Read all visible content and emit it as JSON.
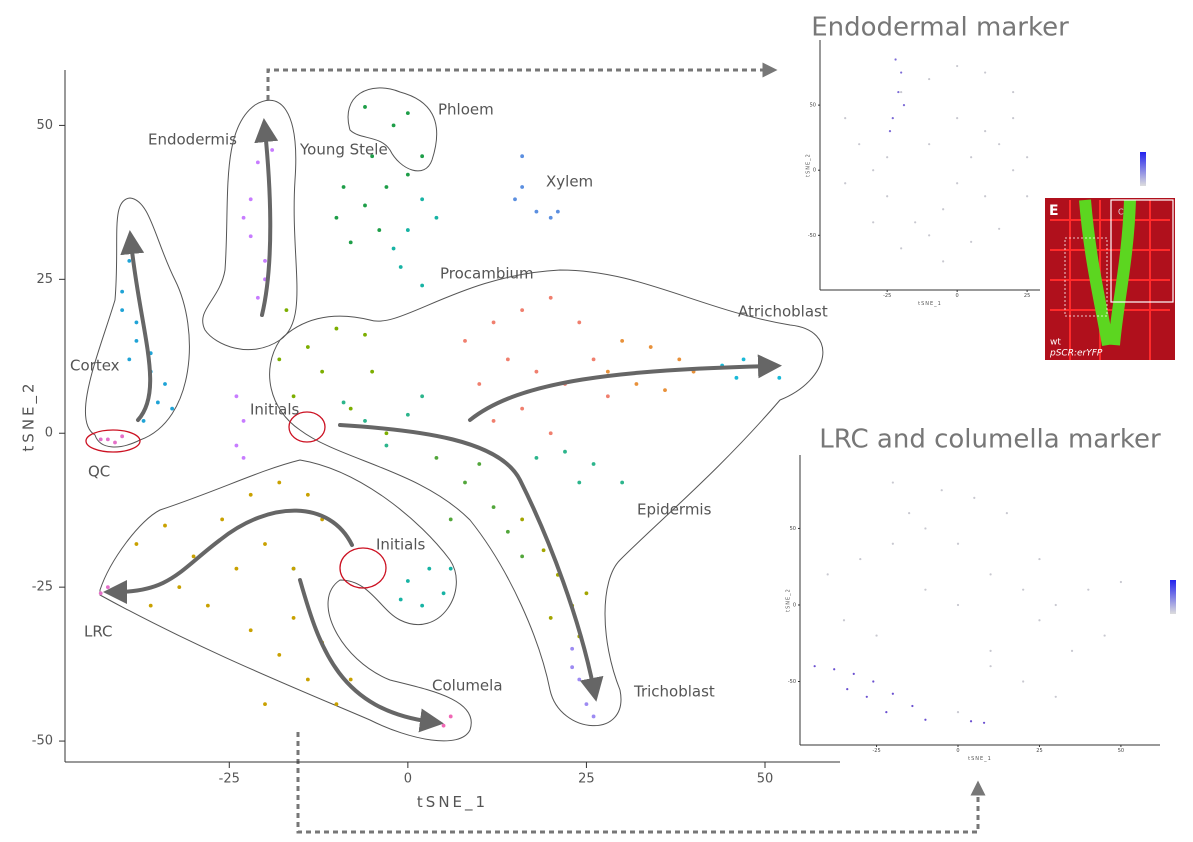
{
  "chart_data": [
    {
      "type": "scatter",
      "x_label": "tSNE_1",
      "y_label": "tSNE_2",
      "xlim": [
        -48,
        60.5
      ],
      "ylim": [
        -53.4,
        59
      ],
      "xticks": [
        -25,
        0,
        25,
        50
      ],
      "yticks": [
        -50,
        -25,
        0,
        25,
        50
      ],
      "annotations": [
        "Endodermis",
        "Young Stele",
        "Phloem",
        "Xylem",
        "Procambium",
        "Cortex",
        "QC",
        "Initials",
        "Atrichoblast",
        "Epidermis",
        "Initials",
        "LRC",
        "Columela",
        "Trichoblast"
      ],
      "series": [
        {
          "color": "#1fa3d6",
          "x": [
            -39,
            -40,
            -38,
            -36,
            -35,
            -37,
            -34,
            -40,
            -38,
            -36,
            -33,
            -39
          ],
          "y": [
            28,
            20,
            15,
            10,
            5,
            2,
            8,
            23,
            18,
            13,
            4,
            12
          ]
        },
        {
          "color": "#e46fc8",
          "x": [
            -42,
            -41,
            -40,
            -43,
            -42,
            -43
          ],
          "y": [
            -1,
            -1.5,
            -0.5,
            -1,
            -25,
            -26
          ]
        },
        {
          "color": "#c77cff",
          "x": [
            -20,
            -21,
            -22,
            -22,
            -20,
            -21,
            -19,
            -23,
            -20,
            -24,
            -23,
            -24,
            -23
          ],
          "y": [
            50,
            44,
            38,
            32,
            28,
            22,
            46,
            35,
            25,
            6,
            2,
            -2,
            -4
          ]
        },
        {
          "color": "#1e9e48",
          "x": [
            0,
            -2,
            2,
            -6,
            0,
            -9,
            -6,
            -4,
            -10,
            -3,
            -8,
            -5
          ],
          "y": [
            52,
            50,
            45,
            53,
            42,
            40,
            37,
            33,
            35,
            40,
            31,
            45
          ]
        },
        {
          "color": "#17b3a4",
          "x": [
            2,
            0,
            -1,
            2,
            4,
            -2,
            0,
            3,
            5,
            -1,
            6,
            2,
            -16
          ],
          "y": [
            38,
            33,
            27,
            24,
            35,
            30,
            -24,
            -22,
            -26,
            -27,
            -22,
            -28,
            -22
          ]
        },
        {
          "color": "#5b8fe0",
          "x": [
            16,
            16,
            18,
            20,
            15,
            21
          ],
          "y": [
            45,
            40,
            36,
            35,
            38,
            36
          ]
        },
        {
          "color": "#7cae00",
          "x": [
            -17,
            -14,
            -10,
            -6,
            -18,
            -12,
            -5,
            -16,
            -8,
            -3
          ],
          "y": [
            20,
            14,
            17,
            16,
            12,
            10,
            10,
            6,
            4,
            0
          ]
        },
        {
          "color": "#2cb58c",
          "x": [
            -9,
            -6,
            -3,
            0,
            2,
            18,
            22,
            26,
            30,
            24
          ],
          "y": [
            5,
            2,
            -2,
            3,
            6,
            -4,
            -3,
            -5,
            -8,
            -8
          ]
        },
        {
          "color": "#f07f6e",
          "x": [
            8,
            12,
            16,
            20,
            24,
            10,
            14,
            18,
            22,
            26,
            12,
            16,
            20,
            28
          ],
          "y": [
            15,
            18,
            20,
            22,
            18,
            8,
            12,
            10,
            8,
            12,
            2,
            4,
            0,
            6
          ]
        },
        {
          "color": "#e8913a",
          "x": [
            30,
            34,
            38,
            32,
            36,
            40,
            28
          ],
          "y": [
            15,
            14,
            12,
            8,
            7,
            10,
            10
          ]
        },
        {
          "color": "#1ab9d8",
          "x": [
            44,
            47,
            50,
            52,
            46
          ],
          "y": [
            11,
            12,
            11,
            9,
            9
          ]
        },
        {
          "color": "#52a63b",
          "x": [
            4,
            8,
            12,
            10,
            14,
            6,
            16
          ],
          "y": [
            -4,
            -8,
            -12,
            -5,
            -16,
            -14,
            -20
          ]
        },
        {
          "color": "#a3a500",
          "x": [
            16,
            19,
            21,
            23,
            24,
            20,
            25
          ],
          "y": [
            -14,
            -19,
            -23,
            -28,
            -33,
            -30,
            -26
          ]
        },
        {
          "color": "#9d8bf2",
          "x": [
            23,
            24,
            25,
            26,
            23
          ],
          "y": [
            -35,
            -40,
            -44,
            -46,
            -38
          ]
        },
        {
          "color": "#c9a100",
          "x": [
            -38,
            -34,
            -30,
            -26,
            -22,
            -18,
            -14,
            -12,
            -32,
            -28,
            -24,
            -20,
            -16,
            -36,
            -22,
            -18,
            -14,
            -10,
            -16,
            -12,
            -20,
            -8
          ],
          "y": [
            -18,
            -15,
            -20,
            -14,
            -10,
            -8,
            -10,
            -14,
            -25,
            -28,
            -22,
            -18,
            -22,
            -28,
            -32,
            -36,
            -40,
            -44,
            -30,
            -34,
            -44,
            -40
          ]
        },
        {
          "color": "#f067b5",
          "x": [
            4,
            6,
            5
          ],
          "y": [
            -47,
            -46,
            -47.5
          ]
        }
      ]
    },
    {
      "type": "scatter",
      "title": "Endodermal marker",
      "x_label": "tSNE_1",
      "y_label": "tSNE_2",
      "xlim": [
        -49,
        29.6
      ],
      "ylim": [
        -92,
        100
      ],
      "xticks": [
        -25,
        0,
        25
      ],
      "yticks": [
        -50,
        0,
        50
      ],
      "series": [
        {
          "color": "#c8c8d0",
          "x": [
            -40,
            -35,
            -30,
            -25,
            -15,
            -10,
            -5,
            0,
            5,
            10,
            15,
            20,
            25,
            -20,
            -10,
            0,
            10,
            20,
            -30,
            -20,
            -5,
            5,
            15,
            -40,
            -25,
            0,
            20,
            -10,
            10,
            25
          ],
          "y": [
            40,
            20,
            0,
            -20,
            -40,
            -50,
            -30,
            -10,
            10,
            30,
            20,
            0,
            -20,
            60,
            70,
            80,
            75,
            60,
            -40,
            -60,
            -70,
            -55,
            -45,
            -10,
            10,
            40,
            40,
            20,
            -20,
            10
          ]
        },
        {
          "color": "#7c6ad6",
          "x": [
            -22,
            -20,
            -21,
            -19,
            -23,
            -24
          ],
          "y": [
            85,
            75,
            60,
            50,
            40,
            30
          ]
        }
      ]
    },
    {
      "type": "scatter",
      "title": "LRC and columella marker",
      "x_label": "tSNE_1",
      "y_label": "tSNE_2",
      "xlim": [
        -48.5,
        62
      ],
      "ylim": [
        -91.5,
        98
      ],
      "xticks": [
        -25,
        0,
        25,
        50
      ],
      "yticks": [
        -50,
        0,
        50
      ],
      "series": [
        {
          "color": "#c8c8d0",
          "x": [
            -40,
            -30,
            -20,
            -10,
            0,
            10,
            20,
            30,
            40,
            50,
            -35,
            -25,
            -15,
            -5,
            5,
            15,
            25,
            35,
            45,
            -20,
            -10,
            0,
            10,
            20,
            30,
            0,
            10,
            25
          ],
          "y": [
            20,
            30,
            40,
            10,
            0,
            20,
            10,
            0,
            10,
            15,
            -10,
            -20,
            60,
            75,
            70,
            60,
            -10,
            -30,
            -20,
            80,
            50,
            40,
            -40,
            -50,
            -60,
            -70,
            -30,
            30
          ]
        },
        {
          "color": "#6a4fd0",
          "x": [
            -44,
            -38,
            -32,
            -26,
            -20,
            -14,
            -10,
            -34,
            -28,
            -22,
            4,
            8
          ],
          "y": [
            -40,
            -42,
            -45,
            -50,
            -58,
            -66,
            -75,
            -55,
            -60,
            -70,
            -76,
            -77
          ]
        }
      ]
    }
  ],
  "image_panel": {
    "label": "E",
    "inset_label": "C",
    "lines": [
      "wt",
      "pSCR:erYFP"
    ]
  }
}
